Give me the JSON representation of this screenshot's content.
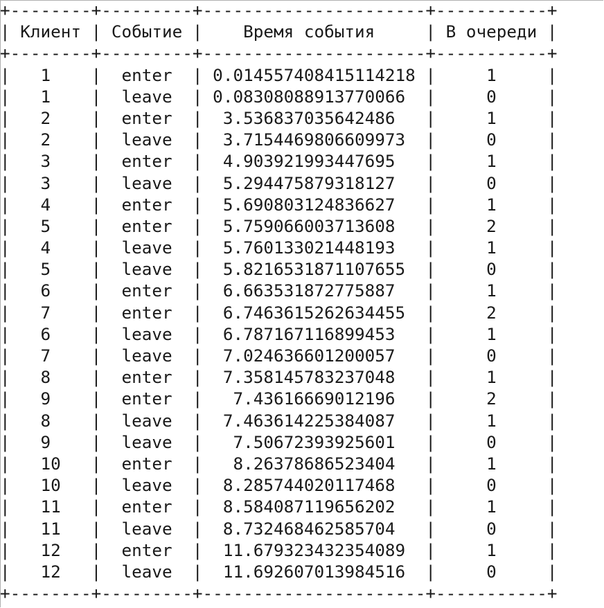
{
  "table": {
    "headers": [
      "Клиент",
      "Событие",
      "Время события",
      "В очереди"
    ],
    "rows": [
      [
        "1",
        "enter",
        "0.014557408415114218",
        "1"
      ],
      [
        "1",
        "leave",
        "0.08308088913770066",
        "0"
      ],
      [
        "2",
        "enter",
        "3.536837035642486",
        "1"
      ],
      [
        "2",
        "leave",
        "3.7154469806609973",
        "0"
      ],
      [
        "3",
        "enter",
        "4.903921993447695",
        "1"
      ],
      [
        "3",
        "leave",
        "5.294475879318127",
        "0"
      ],
      [
        "4",
        "enter",
        "5.690803124836627",
        "1"
      ],
      [
        "5",
        "enter",
        "5.759066003713608",
        "2"
      ],
      [
        "4",
        "leave",
        "5.760133021448193",
        "1"
      ],
      [
        "5",
        "leave",
        "5.8216531871107655",
        "0"
      ],
      [
        "6",
        "enter",
        "6.663531872775887",
        "1"
      ],
      [
        "7",
        "enter",
        "6.7463615262634455",
        "2"
      ],
      [
        "6",
        "leave",
        "6.787167116899453",
        "1"
      ],
      [
        "7",
        "leave",
        "7.024636601200057",
        "0"
      ],
      [
        "8",
        "enter",
        "7.358145783237048",
        "1"
      ],
      [
        "9",
        "enter",
        "7.43616669012196",
        "2"
      ],
      [
        "8",
        "leave",
        "7.463614225384087",
        "1"
      ],
      [
        "9",
        "leave",
        "7.50672393925601",
        "0"
      ],
      [
        "10",
        "enter",
        "8.26378686523404",
        "1"
      ],
      [
        "10",
        "leave",
        "8.285744020117468",
        "0"
      ],
      [
        "11",
        "enter",
        "8.584087119656202",
        "1"
      ],
      [
        "11",
        "leave",
        "8.732468462585704",
        "0"
      ],
      [
        "12",
        "enter",
        "11.679323432354089",
        "1"
      ],
      [
        "12",
        "leave",
        "11.692607013984516",
        "0"
      ]
    ]
  }
}
